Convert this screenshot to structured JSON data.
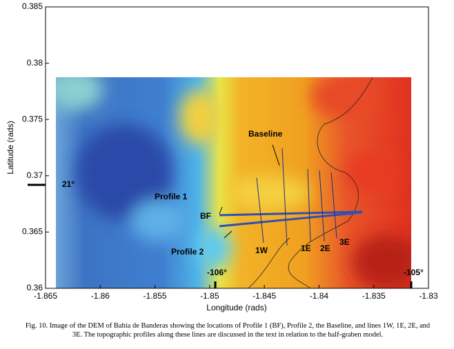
{
  "chart_data": {
    "type": "image",
    "xlabel": "Longitude (rads)",
    "ylabel": "Latitude (rads)",
    "xlim": [
      -1.865,
      -1.83
    ],
    "xticks": [
      -1.865,
      -1.86,
      -1.855,
      -1.85,
      -1.845,
      -1.84,
      -1.835,
      -1.83
    ],
    "ylim": [
      0.36,
      0.385
    ],
    "yticks": [
      0.36,
      0.365,
      0.37,
      0.375,
      0.38,
      0.385
    ],
    "annotations": [
      "21°",
      "-106°",
      "-105°",
      "Profile 1",
      "BF",
      "Profile 2",
      "Baseline",
      "1W",
      "1E",
      "2E",
      "3E"
    ]
  },
  "caption": "Fig. 10. Image of the DEM of Bahía de Banderas showing the locations of Profile 1 (BF), Profile 2, the Baseline, and lines 1W, 1E, 2E, and 3E. The topographic profiles along these lines are discussed in the text in relation to the half-graben model."
}
